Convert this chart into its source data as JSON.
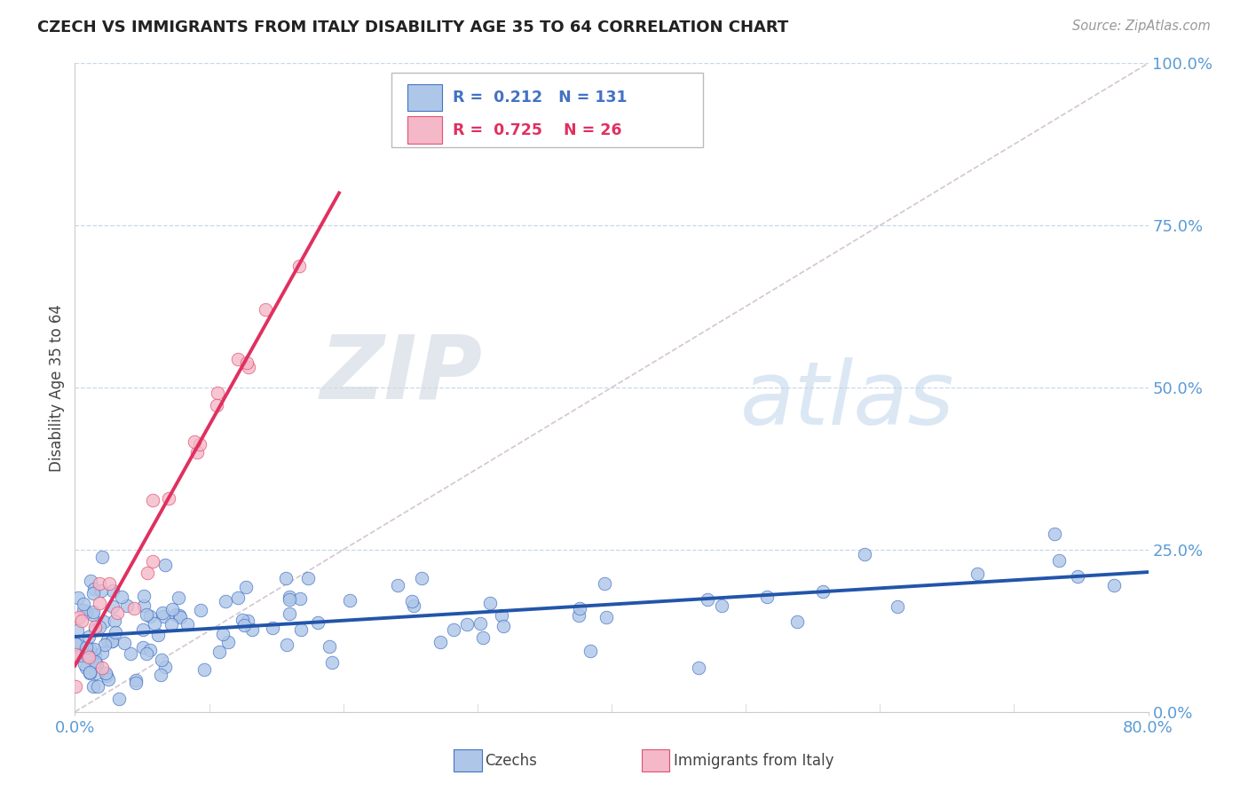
{
  "title": "CZECH VS IMMIGRANTS FROM ITALY DISABILITY AGE 35 TO 64 CORRELATION CHART",
  "source_text": "Source: ZipAtlas.com",
  "ylabel": "Disability Age 35 to 64",
  "xlim": [
    0.0,
    0.8
  ],
  "ylim": [
    0.0,
    1.0
  ],
  "ytick_positions": [
    0.0,
    0.25,
    0.5,
    0.75,
    1.0
  ],
  "ytick_labels": [
    "0.0%",
    "25.0%",
    "50.0%",
    "75.0%",
    "100.0%"
  ],
  "xtick_positions": [
    0.0,
    0.8
  ],
  "xtick_labels": [
    "0.0%",
    "80.0%"
  ],
  "czech_color": "#AEC6E8",
  "czech_edge_color": "#4472C4",
  "italy_color": "#F4B8C8",
  "italy_edge_color": "#E05070",
  "czech_line_color": "#2255AA",
  "italy_line_color": "#E03060",
  "diag_color": "#D0C0C8",
  "grid_color": "#C8D8E8",
  "R_czech": 0.212,
  "N_czech": 131,
  "R_italy": 0.725,
  "N_italy": 26,
  "background_color": "#FFFFFF",
  "watermark_zip": "ZIP",
  "watermark_atlas": "atlas",
  "legend_R_czech_color": "#4472C4",
  "legend_R_italy_color": "#E03060"
}
